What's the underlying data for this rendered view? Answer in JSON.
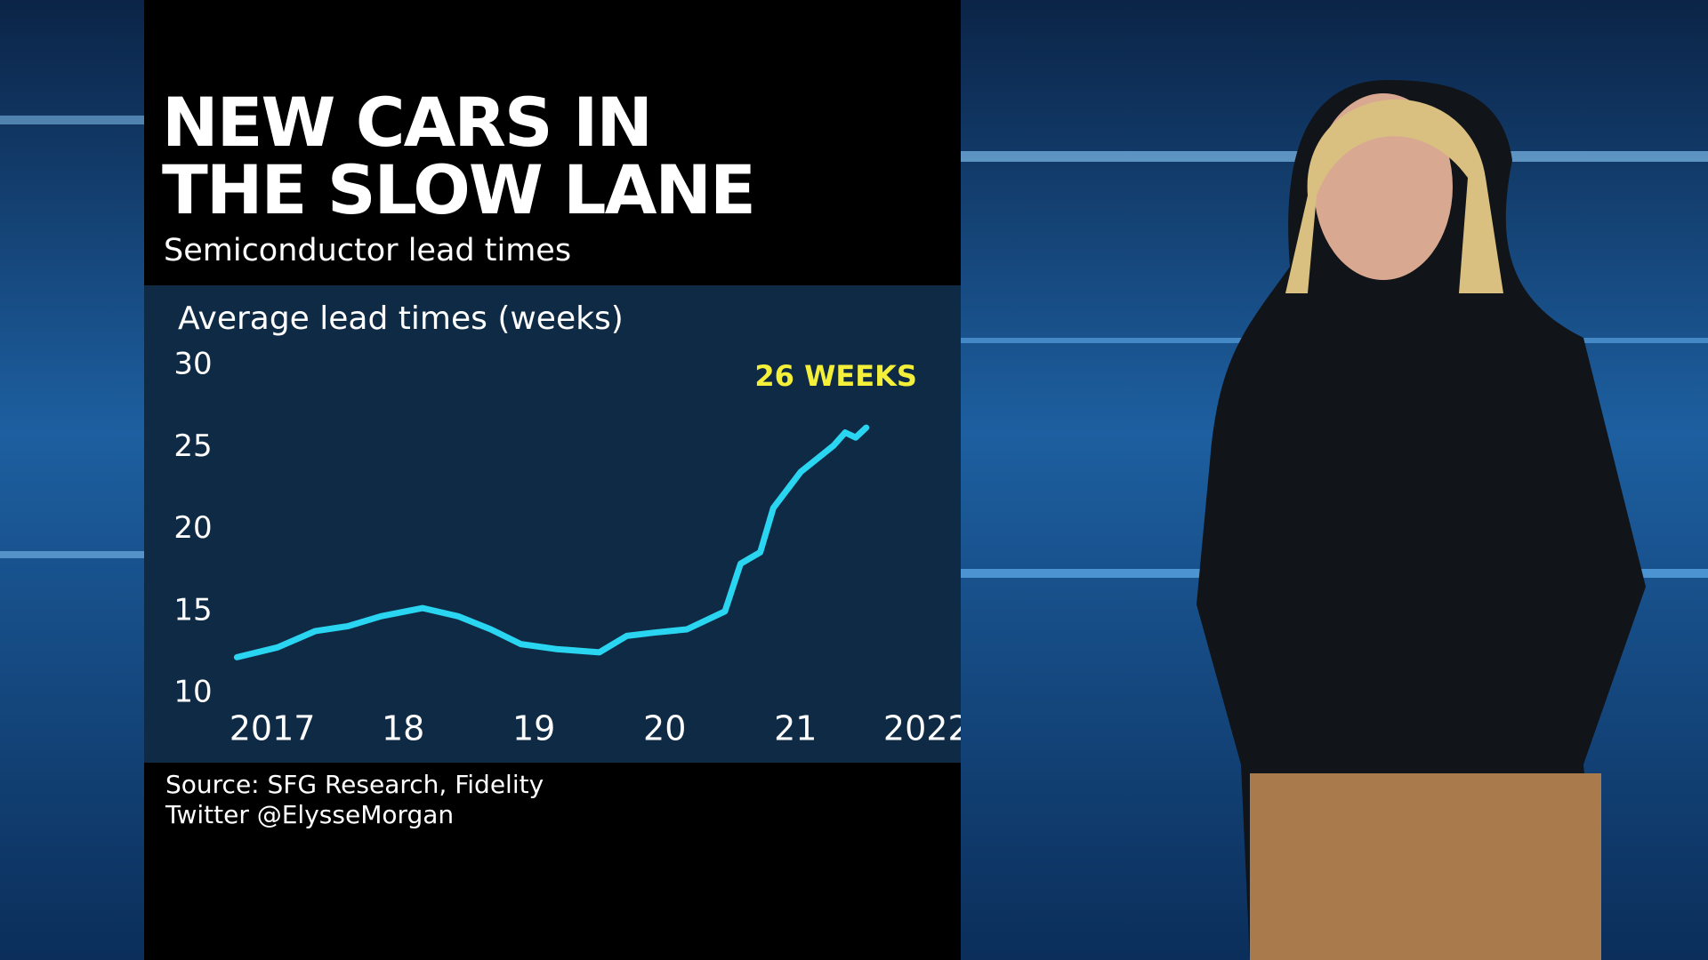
{
  "chart_data": {
    "type": "line",
    "title": "NEW CARS IN THE SLOW LANE",
    "subtitle": "Semiconductor lead times",
    "y_label": "Average lead times (weeks)",
    "annotation": "26 WEEKS",
    "source": "Source: SFG Research, Fidelity",
    "credit": "Twitter @ElysseMorgan",
    "x": [
      2016.73,
      2017.04,
      2017.33,
      2017.58,
      2017.83,
      2018.15,
      2018.42,
      2018.67,
      2018.9,
      2019.17,
      2019.5,
      2019.71,
      2019.92,
      2020.17,
      2020.46,
      2020.58,
      2020.73,
      2020.83,
      2021.04,
      2021.29,
      2021.38,
      2021.46,
      2021.54
    ],
    "series": [
      {
        "name": "Average lead times",
        "color": "#29d5f0",
        "values": [
          12.2,
          12.8,
          13.8,
          14.1,
          14.7,
          15.2,
          14.7,
          13.9,
          13.0,
          12.7,
          12.5,
          13.5,
          13.7,
          13.9,
          15.0,
          17.9,
          18.6,
          21.3,
          23.5,
          25.1,
          25.9,
          25.6,
          26.2
        ]
      }
    ],
    "xlim": [
      2016.7,
      2022.1
    ],
    "xticks": [
      {
        "value": 2017,
        "label": "2017"
      },
      {
        "value": 2018,
        "label": "18"
      },
      {
        "value": 2019,
        "label": "19"
      },
      {
        "value": 2020,
        "label": "20"
      },
      {
        "value": 2021,
        "label": "21"
      },
      {
        "value": 2022,
        "label": "2022"
      }
    ],
    "ylim": [
      10,
      30
    ],
    "yticks": [
      10,
      15,
      20,
      25,
      30
    ],
    "grid": false
  }
}
